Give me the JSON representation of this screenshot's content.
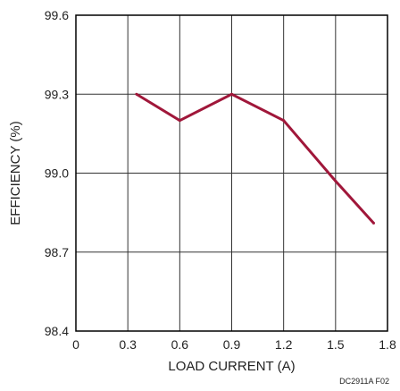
{
  "chart_data": {
    "type": "line",
    "xlabel": "LOAD CURRENT (A)",
    "ylabel": "EFFICIENCY (%)",
    "xlim": [
      0,
      1.8
    ],
    "ylim": [
      98.4,
      99.6
    ],
    "x_ticks": [
      "0",
      "0.3",
      "0.6",
      "0.9",
      "1.2",
      "1.5",
      "1.8"
    ],
    "y_ticks": [
      "98.4",
      "98.7",
      "99.0",
      "99.3",
      "99.6"
    ],
    "grid": true,
    "series": [
      {
        "x": [
          0.35,
          0.6,
          0.9,
          1.2,
          1.5,
          1.72
        ],
        "y": [
          99.3,
          99.2,
          99.3,
          99.2,
          98.97,
          98.81
        ]
      }
    ]
  },
  "figure_id": "DC2911A F02",
  "colors": {
    "line": "#a0173a",
    "grid": "#333333",
    "frame": "#000000"
  }
}
